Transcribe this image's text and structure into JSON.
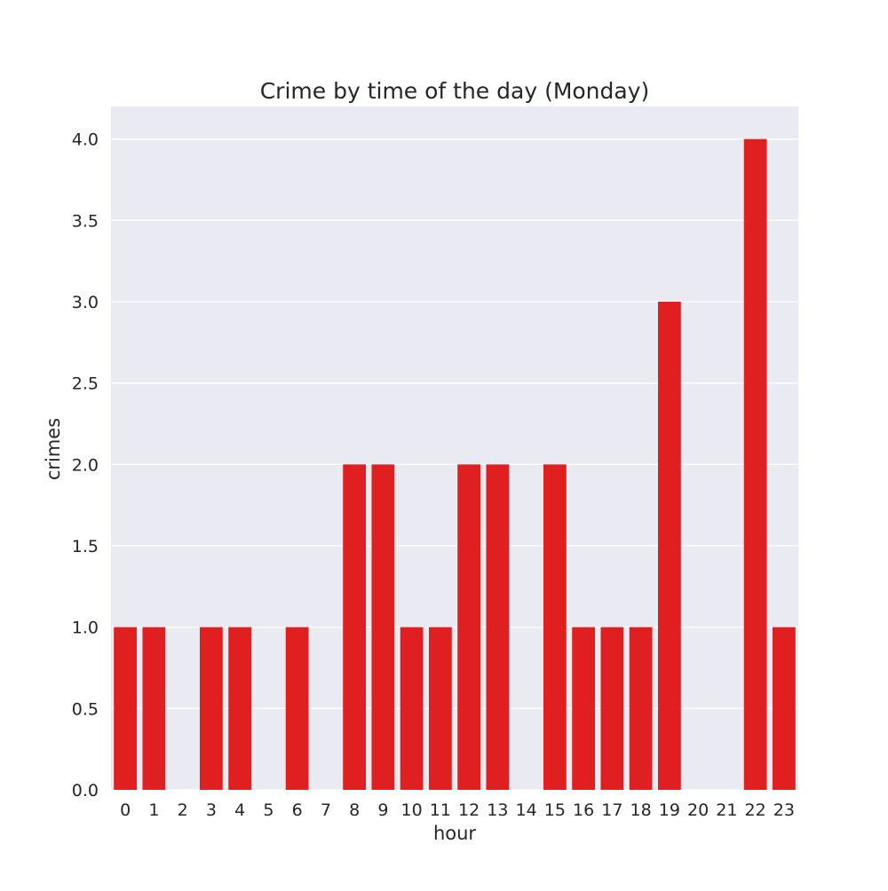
{
  "chart_data": {
    "type": "bar",
    "title": "Crime by time of the day (Monday)",
    "xlabel": "hour",
    "ylabel": "crimes",
    "categories": [
      "0",
      "1",
      "2",
      "3",
      "4",
      "5",
      "6",
      "7",
      "8",
      "9",
      "10",
      "11",
      "12",
      "13",
      "14",
      "15",
      "16",
      "17",
      "18",
      "19",
      "20",
      "21",
      "22",
      "23"
    ],
    "values": [
      1,
      1,
      0,
      1,
      1,
      0,
      1,
      0,
      2,
      2,
      1,
      1,
      2,
      2,
      0,
      2,
      1,
      1,
      1,
      3,
      0,
      0,
      4,
      1
    ],
    "ylim": [
      0,
      4.2
    ],
    "yticks": [
      0.0,
      0.5,
      1.0,
      1.5,
      2.0,
      2.5,
      3.0,
      3.5,
      4.0
    ],
    "ytick_labels": [
      "0.0",
      "0.5",
      "1.0",
      "1.5",
      "2.0",
      "2.5",
      "3.0",
      "3.5",
      "4.0"
    ],
    "grid": true,
    "colors": {
      "bar": "#e02020",
      "plot_background": "#eaeaf2",
      "grid": "#ffffff"
    }
  }
}
